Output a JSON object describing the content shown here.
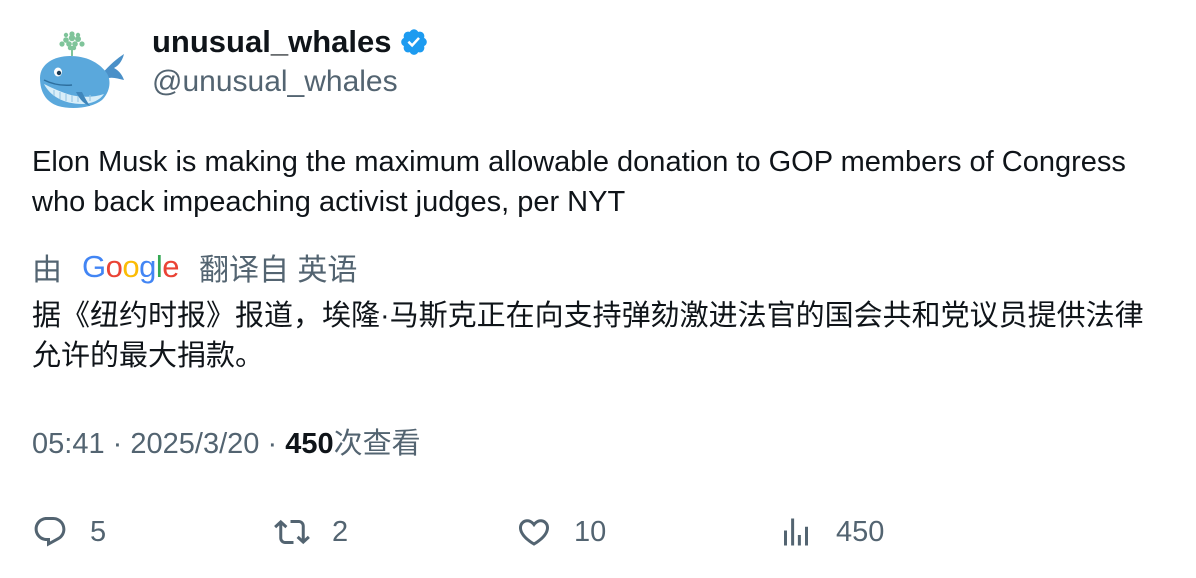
{
  "user": {
    "display_name": "unusual_whales",
    "handle": "@unusual_whales",
    "verified_color": "#1d9bf0"
  },
  "tweet": {
    "text": "Elon Musk is making the maximum allowable donation to GOP members of Congress who back impeaching activist judges, per NYT",
    "translation": {
      "by_label": "由",
      "provider_letters": [
        "G",
        "o",
        "o",
        "g",
        "l",
        "e"
      ],
      "provider_colors": [
        "#4285F4",
        "#EA4335",
        "#FBBC05",
        "#4285F4",
        "#34A853",
        "#EA4335"
      ],
      "from_label": "翻译自 英语",
      "text": "据《纽约时报》报道，埃隆·马斯克正在向支持弹劾激进法官的国会共和党议员提供法律允许的最大捐款。"
    },
    "time": "05:41",
    "separator": "·",
    "date": "2025/3/20",
    "views": "450",
    "views_label": "次查看"
  },
  "actions": {
    "replies": "5",
    "retweets": "2",
    "likes": "10",
    "views": "450"
  },
  "icons": {
    "avatar": "whale-avatar-icon",
    "verified": "verified-badge-icon",
    "reply": "reply-icon",
    "retweet": "retweet-icon",
    "like": "heart-icon",
    "views": "bar-chart-icon"
  }
}
